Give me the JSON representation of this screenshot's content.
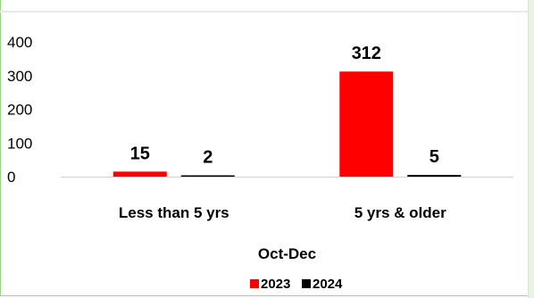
{
  "chart_data": {
    "type": "bar",
    "categories": [
      "Less than 5 yrs",
      "5 yrs & older"
    ],
    "series": [
      {
        "name": "2023",
        "values": [
          15,
          312
        ],
        "color": "#ff0000"
      },
      {
        "name": "2024",
        "values": [
          2,
          5
        ],
        "color": "#000000"
      }
    ],
    "title": "",
    "xlabel": "Oct-Dec",
    "ylabel": "",
    "ylim": [
      0,
      400
    ],
    "yticks": [
      0,
      100,
      200,
      300,
      400
    ],
    "grid": false,
    "legend": "bottom",
    "data_labels": true
  }
}
